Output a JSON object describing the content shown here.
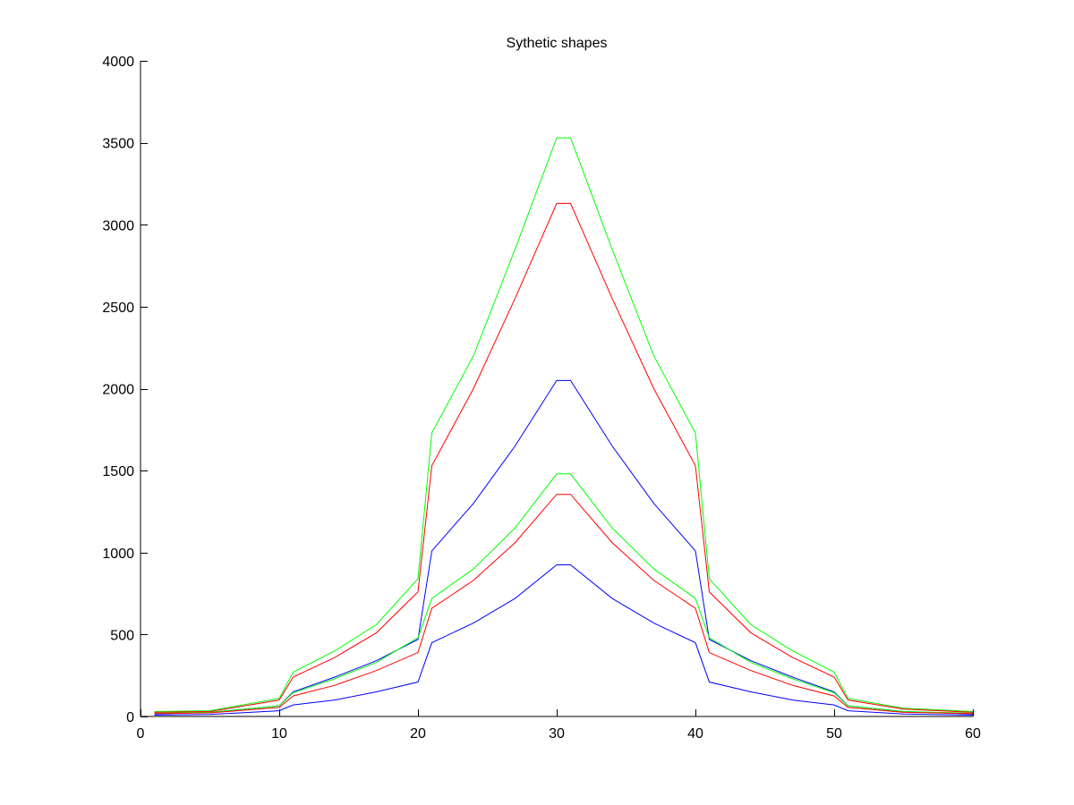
{
  "chart_data": {
    "type": "line",
    "title": "Sythetic shapes",
    "xlabel": "",
    "ylabel": "",
    "xlim": [
      0,
      60
    ],
    "ylim": [
      0,
      4000
    ],
    "xticks": [
      0,
      10,
      20,
      30,
      40,
      50,
      60
    ],
    "yticks": [
      0,
      500,
      1000,
      1500,
      2000,
      2500,
      3000,
      3500,
      4000
    ],
    "grid": false,
    "legend": "none",
    "series": [
      {
        "color": "#00ff00",
        "points": [
          [
            1,
            30
          ],
          [
            5,
            35
          ],
          [
            10,
            110
          ],
          [
            11,
            270
          ],
          [
            14,
            400
          ],
          [
            17,
            560
          ],
          [
            20,
            840
          ],
          [
            21,
            1730
          ],
          [
            24,
            2200
          ],
          [
            27,
            2850
          ],
          [
            30,
            3530
          ],
          [
            31,
            3530
          ],
          [
            34,
            2850
          ],
          [
            37,
            2200
          ],
          [
            40,
            1730
          ],
          [
            41,
            840
          ],
          [
            44,
            560
          ],
          [
            47,
            400
          ],
          [
            50,
            270
          ],
          [
            51,
            110
          ],
          [
            55,
            50
          ],
          [
            60,
            30
          ]
        ]
      },
      {
        "color": "#ff0000",
        "points": [
          [
            1,
            25
          ],
          [
            5,
            30
          ],
          [
            10,
            100
          ],
          [
            11,
            240
          ],
          [
            14,
            360
          ],
          [
            17,
            510
          ],
          [
            20,
            760
          ],
          [
            21,
            1530
          ],
          [
            24,
            2000
          ],
          [
            27,
            2550
          ],
          [
            30,
            3130
          ],
          [
            31,
            3130
          ],
          [
            34,
            2550
          ],
          [
            37,
            2000
          ],
          [
            40,
            1530
          ],
          [
            41,
            760
          ],
          [
            44,
            510
          ],
          [
            47,
            360
          ],
          [
            50,
            240
          ],
          [
            51,
            100
          ],
          [
            55,
            45
          ],
          [
            60,
            25
          ]
        ]
      },
      {
        "color": "#0000ff",
        "points": [
          [
            1,
            15
          ],
          [
            5,
            25
          ],
          [
            10,
            65
          ],
          [
            11,
            150
          ],
          [
            14,
            240
          ],
          [
            17,
            340
          ],
          [
            20,
            470
          ],
          [
            21,
            1010
          ],
          [
            24,
            1300
          ],
          [
            27,
            1650
          ],
          [
            30,
            2050
          ],
          [
            31,
            2050
          ],
          [
            34,
            1650
          ],
          [
            37,
            1300
          ],
          [
            40,
            1010
          ],
          [
            41,
            470
          ],
          [
            44,
            340
          ],
          [
            47,
            240
          ],
          [
            50,
            150
          ],
          [
            51,
            65
          ],
          [
            55,
            30
          ],
          [
            60,
            15
          ]
        ]
      },
      {
        "color": "#00ff00",
        "points": [
          [
            1,
            20
          ],
          [
            5,
            25
          ],
          [
            10,
            65
          ],
          [
            11,
            145
          ],
          [
            14,
            230
          ],
          [
            17,
            330
          ],
          [
            20,
            480
          ],
          [
            21,
            720
          ],
          [
            24,
            900
          ],
          [
            27,
            1150
          ],
          [
            30,
            1480
          ],
          [
            31,
            1480
          ],
          [
            34,
            1150
          ],
          [
            37,
            900
          ],
          [
            40,
            720
          ],
          [
            41,
            480
          ],
          [
            44,
            330
          ],
          [
            47,
            230
          ],
          [
            50,
            145
          ],
          [
            51,
            65
          ],
          [
            55,
            30
          ],
          [
            60,
            20
          ]
        ]
      },
      {
        "color": "#ff0000",
        "points": [
          [
            1,
            18
          ],
          [
            5,
            22
          ],
          [
            10,
            55
          ],
          [
            11,
            125
          ],
          [
            14,
            190
          ],
          [
            17,
            280
          ],
          [
            20,
            390
          ],
          [
            21,
            660
          ],
          [
            24,
            830
          ],
          [
            27,
            1060
          ],
          [
            30,
            1355
          ],
          [
            31,
            1355
          ],
          [
            34,
            1060
          ],
          [
            37,
            830
          ],
          [
            40,
            660
          ],
          [
            41,
            390
          ],
          [
            44,
            280
          ],
          [
            47,
            190
          ],
          [
            50,
            125
          ],
          [
            51,
            55
          ],
          [
            55,
            25
          ],
          [
            60,
            18
          ]
        ]
      },
      {
        "color": "#0000ff",
        "points": [
          [
            1,
            8
          ],
          [
            5,
            12
          ],
          [
            10,
            35
          ],
          [
            11,
            70
          ],
          [
            14,
            100
          ],
          [
            17,
            150
          ],
          [
            20,
            210
          ],
          [
            21,
            450
          ],
          [
            24,
            570
          ],
          [
            27,
            720
          ],
          [
            30,
            925
          ],
          [
            31,
            925
          ],
          [
            34,
            720
          ],
          [
            37,
            570
          ],
          [
            40,
            450
          ],
          [
            41,
            210
          ],
          [
            44,
            150
          ],
          [
            47,
            100
          ],
          [
            50,
            70
          ],
          [
            51,
            35
          ],
          [
            55,
            15
          ],
          [
            60,
            8
          ]
        ]
      }
    ]
  }
}
